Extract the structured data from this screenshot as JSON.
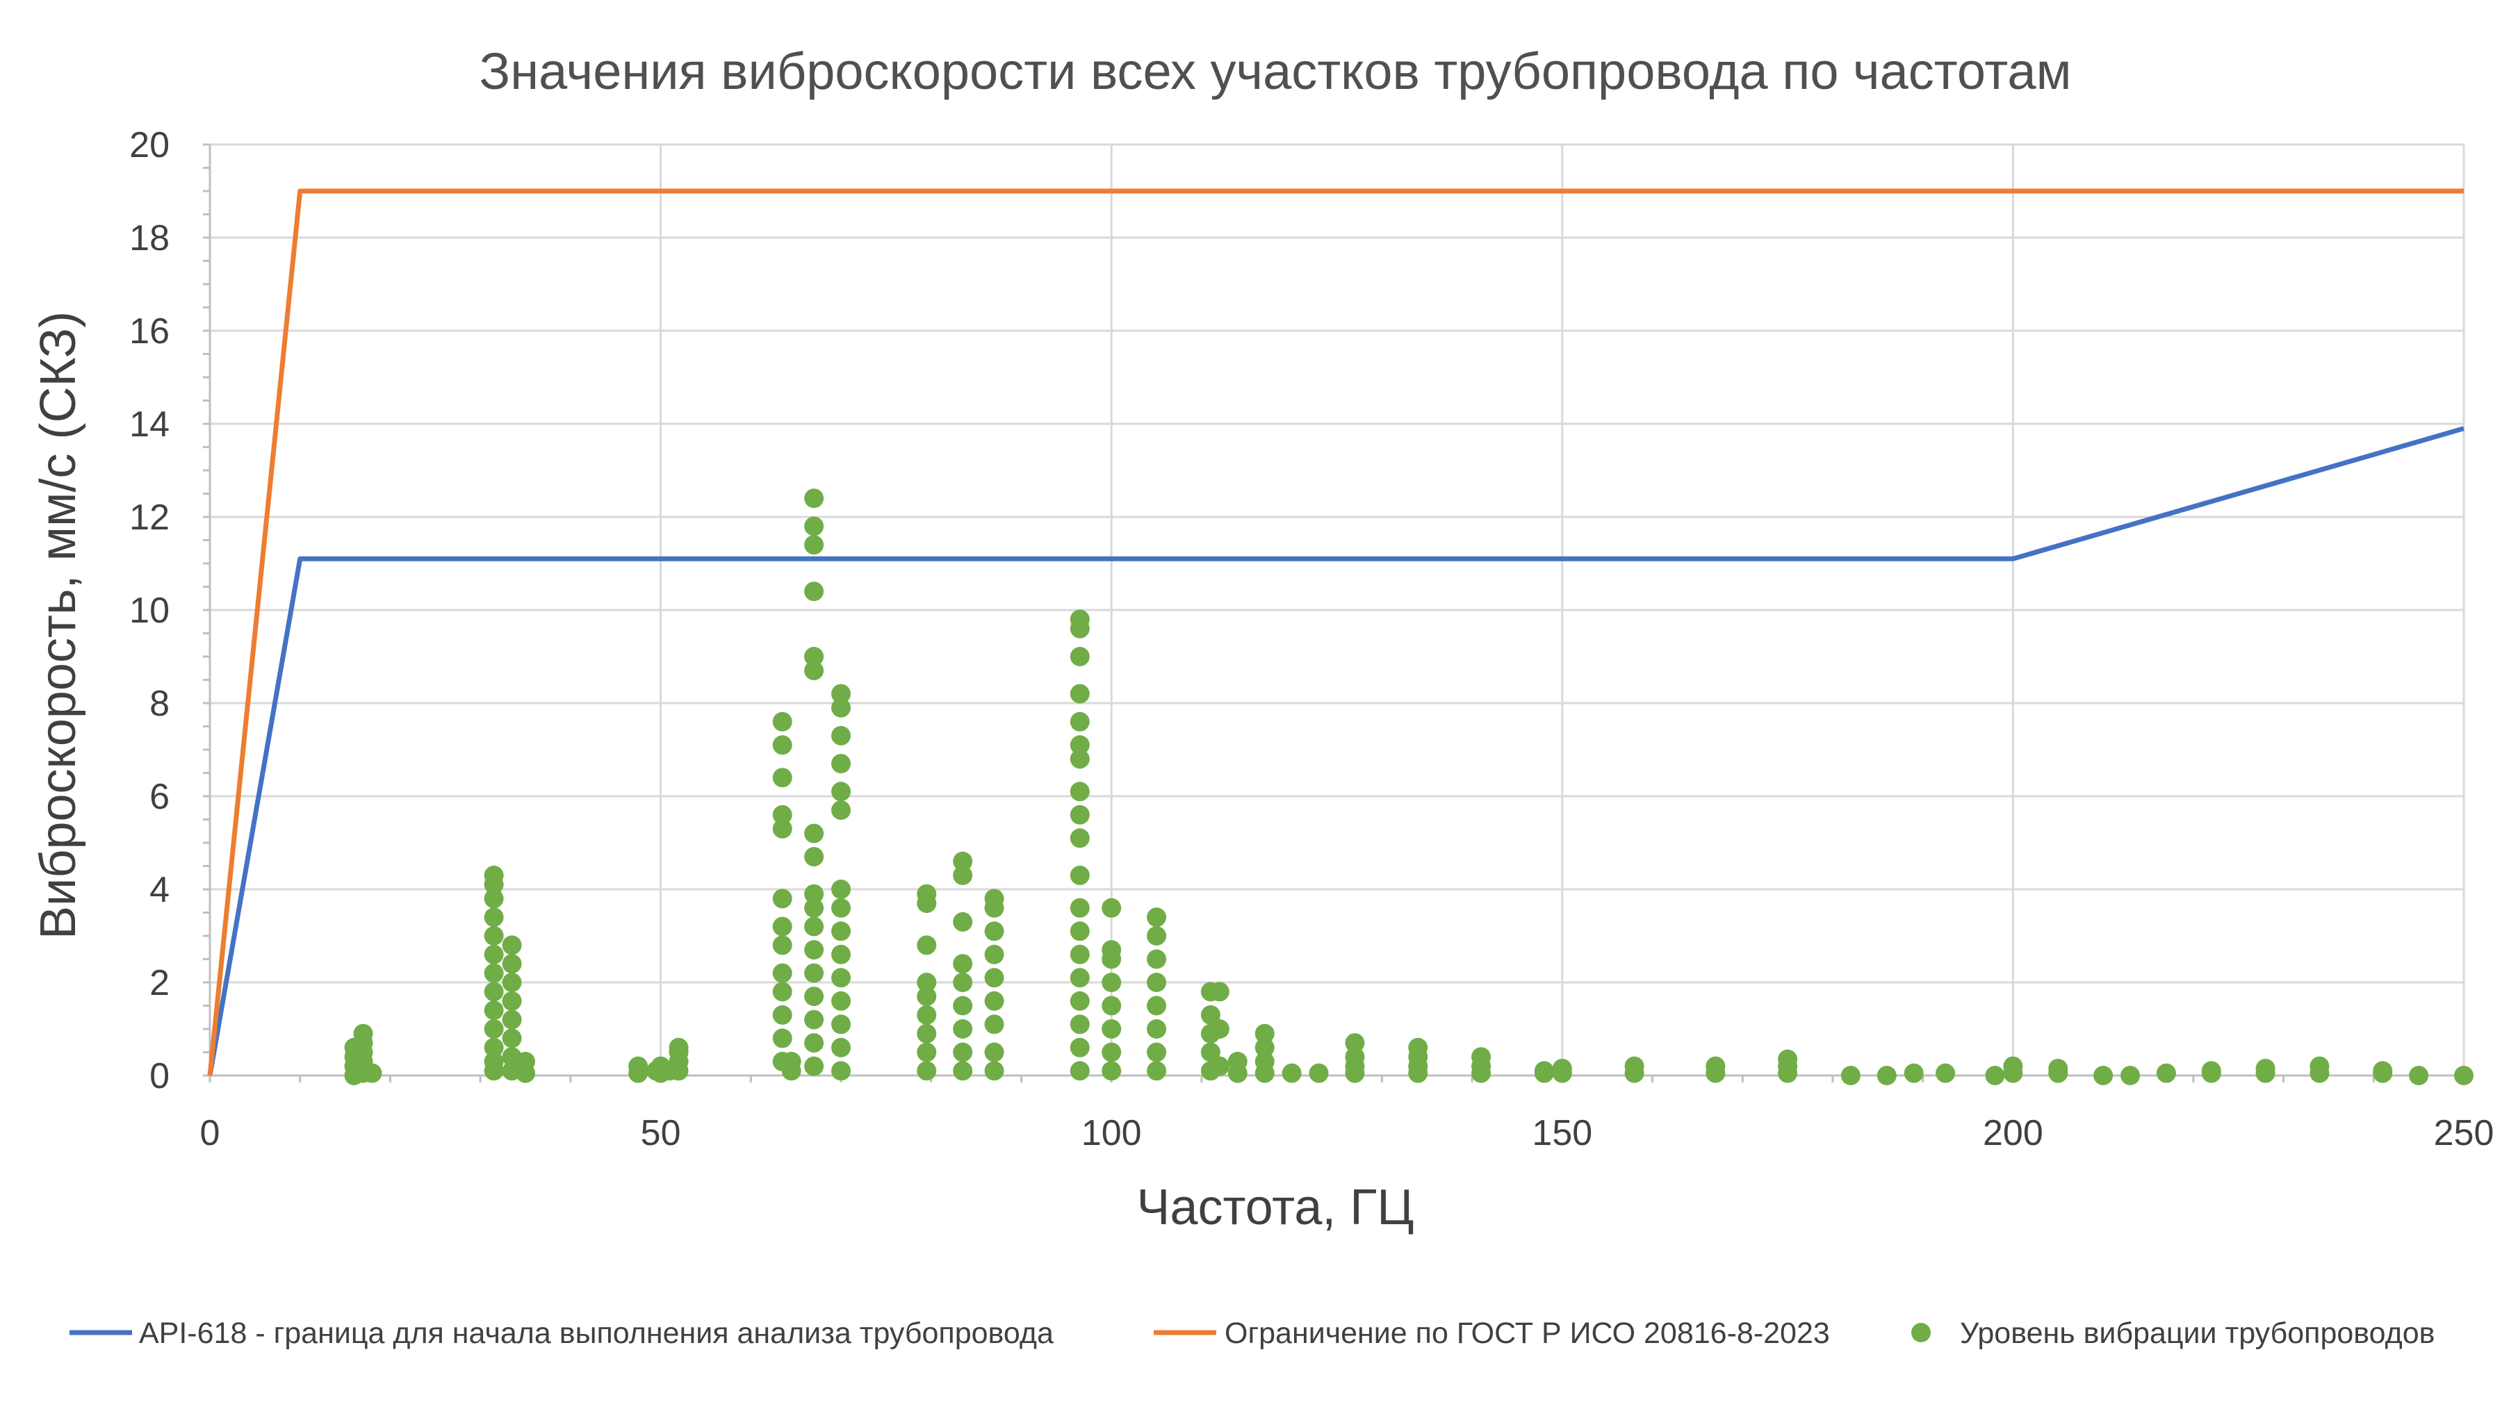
{
  "chart_data": {
    "type": "scatter",
    "title": "Значения виброскорости всех участков трубопровода по частотам",
    "xlabel": "Частота, ГЦ",
    "ylabel": "Виброскорость, мм/с (СКЗ)",
    "xlim": [
      0,
      250
    ],
    "ylim": [
      0,
      20
    ],
    "x_ticks": [
      "0",
      "50",
      "100",
      "150",
      "200",
      "250"
    ],
    "y_ticks": [
      "0",
      "2",
      "4",
      "6",
      "8",
      "10",
      "12",
      "14",
      "16",
      "18",
      "20"
    ],
    "grid": true,
    "legend_position": "bottom",
    "series": [
      {
        "name": "API-618 - граница для начала выполнения анализа трубопровода",
        "type": "line",
        "color": "#4472C4",
        "points": [
          [
            0,
            0
          ],
          [
            10,
            11.1
          ],
          [
            200,
            11.1
          ],
          [
            250,
            13.9
          ]
        ]
      },
      {
        "name": "Ограничение по ГОСТ Р ИСО 20816-8-2023",
        "type": "line",
        "color": "#ED7D31",
        "points": [
          [
            0,
            0
          ],
          [
            10,
            19.0
          ],
          [
            250,
            19.0
          ]
        ]
      },
      {
        "name": "Уровень вибрации трубопроводов",
        "type": "scatter",
        "color": "#70AD47",
        "points": [
          [
            16,
            0.0
          ],
          [
            16,
            0.2
          ],
          [
            16,
            0.4
          ],
          [
            16,
            0.6
          ],
          [
            17,
            0.05
          ],
          [
            17,
            0.3
          ],
          [
            17,
            0.5
          ],
          [
            17,
            0.7
          ],
          [
            17,
            0.9
          ],
          [
            18,
            0.05
          ],
          [
            31.5,
            0.1
          ],
          [
            31.5,
            0.3
          ],
          [
            31.5,
            0.6
          ],
          [
            31.5,
            1.0
          ],
          [
            31.5,
            1.4
          ],
          [
            31.5,
            1.8
          ],
          [
            31.5,
            2.2
          ],
          [
            31.5,
            2.6
          ],
          [
            31.5,
            3.0
          ],
          [
            31.5,
            3.4
          ],
          [
            31.5,
            3.8
          ],
          [
            31.5,
            4.1
          ],
          [
            31.5,
            4.3
          ],
          [
            33.5,
            0.1
          ],
          [
            33.5,
            0.4
          ],
          [
            33.5,
            0.8
          ],
          [
            33.5,
            1.2
          ],
          [
            33.5,
            1.6
          ],
          [
            33.5,
            2.0
          ],
          [
            33.5,
            2.4
          ],
          [
            33.5,
            2.8
          ],
          [
            35,
            0.05
          ],
          [
            35,
            0.3
          ],
          [
            47.5,
            0.05
          ],
          [
            47.5,
            0.2
          ],
          [
            49.5,
            0.1
          ],
          [
            50,
            0.05
          ],
          [
            50,
            0.2
          ],
          [
            51,
            0.1
          ],
          [
            52,
            0.1
          ],
          [
            52,
            0.3
          ],
          [
            52,
            0.5
          ],
          [
            52,
            0.6
          ],
          [
            63.5,
            0.3
          ],
          [
            63.5,
            0.8
          ],
          [
            63.5,
            1.3
          ],
          [
            63.5,
            1.8
          ],
          [
            63.5,
            2.2
          ],
          [
            63.5,
            2.8
          ],
          [
            63.5,
            3.2
          ],
          [
            63.5,
            3.8
          ],
          [
            63.5,
            5.3
          ],
          [
            63.5,
            5.6
          ],
          [
            63.5,
            6.4
          ],
          [
            63.5,
            7.1
          ],
          [
            63.5,
            7.6
          ],
          [
            64.5,
            0.1
          ],
          [
            64.5,
            0.3
          ],
          [
            67,
            0.2
          ],
          [
            67,
            0.7
          ],
          [
            67,
            1.2
          ],
          [
            67,
            1.7
          ],
          [
            67,
            2.2
          ],
          [
            67,
            2.7
          ],
          [
            67,
            3.2
          ],
          [
            67,
            3.6
          ],
          [
            67,
            3.9
          ],
          [
            67,
            4.7
          ],
          [
            67,
            5.2
          ],
          [
            67,
            8.7
          ],
          [
            67,
            9.0
          ],
          [
            67,
            10.4
          ],
          [
            67,
            11.4
          ],
          [
            67,
            11.8
          ],
          [
            67,
            12.4
          ],
          [
            70,
            0.1
          ],
          [
            70,
            0.6
          ],
          [
            70,
            1.1
          ],
          [
            70,
            1.6
          ],
          [
            70,
            2.1
          ],
          [
            70,
            2.6
          ],
          [
            70,
            3.1
          ],
          [
            70,
            3.6
          ],
          [
            70,
            4.0
          ],
          [
            70,
            5.7
          ],
          [
            70,
            6.1
          ],
          [
            70,
            6.7
          ],
          [
            70,
            7.3
          ],
          [
            70,
            7.9
          ],
          [
            70,
            8.2
          ],
          [
            79.5,
            0.1
          ],
          [
            79.5,
            0.5
          ],
          [
            79.5,
            0.9
          ],
          [
            79.5,
            1.3
          ],
          [
            79.5,
            1.7
          ],
          [
            79.5,
            2.0
          ],
          [
            79.5,
            2.8
          ],
          [
            79.5,
            3.7
          ],
          [
            79.5,
            3.9
          ],
          [
            83.5,
            0.1
          ],
          [
            83.5,
            0.5
          ],
          [
            83.5,
            1.0
          ],
          [
            83.5,
            1.5
          ],
          [
            83.5,
            2.0
          ],
          [
            83.5,
            2.4
          ],
          [
            83.5,
            3.3
          ],
          [
            83.5,
            4.3
          ],
          [
            83.5,
            4.6
          ],
          [
            87,
            0.1
          ],
          [
            87,
            0.5
          ],
          [
            87,
            1.1
          ],
          [
            87,
            1.6
          ],
          [
            87,
            2.1
          ],
          [
            87,
            2.6
          ],
          [
            87,
            3.1
          ],
          [
            87,
            3.6
          ],
          [
            87,
            3.8
          ],
          [
            96.5,
            0.1
          ],
          [
            96.5,
            0.6
          ],
          [
            96.5,
            1.1
          ],
          [
            96.5,
            1.6
          ],
          [
            96.5,
            2.1
          ],
          [
            96.5,
            2.6
          ],
          [
            96.5,
            3.1
          ],
          [
            96.5,
            3.6
          ],
          [
            96.5,
            4.3
          ],
          [
            96.5,
            5.1
          ],
          [
            96.5,
            5.6
          ],
          [
            96.5,
            6.1
          ],
          [
            96.5,
            6.8
          ],
          [
            96.5,
            7.1
          ],
          [
            96.5,
            7.6
          ],
          [
            96.5,
            8.2
          ],
          [
            96.5,
            9.0
          ],
          [
            96.5,
            9.6
          ],
          [
            96.5,
            9.8
          ],
          [
            100,
            0.1
          ],
          [
            100,
            0.5
          ],
          [
            100,
            1.0
          ],
          [
            100,
            1.5
          ],
          [
            100,
            2.0
          ],
          [
            100,
            2.5
          ],
          [
            100,
            2.7
          ],
          [
            100,
            3.6
          ],
          [
            105,
            0.1
          ],
          [
            105,
            0.5
          ],
          [
            105,
            1.0
          ],
          [
            105,
            1.5
          ],
          [
            105,
            2.0
          ],
          [
            105,
            2.5
          ],
          [
            105,
            3.0
          ],
          [
            105,
            3.4
          ],
          [
            111,
            0.1
          ],
          [
            111,
            0.5
          ],
          [
            111,
            0.9
          ],
          [
            111,
            1.3
          ],
          [
            111,
            1.8
          ],
          [
            112,
            0.2
          ],
          [
            112,
            1.0
          ],
          [
            112,
            1.8
          ],
          [
            114,
            0.05
          ],
          [
            114,
            0.3
          ],
          [
            117,
            0.05
          ],
          [
            117,
            0.3
          ],
          [
            117,
            0.6
          ],
          [
            117,
            0.9
          ],
          [
            120,
            0.05
          ],
          [
            123,
            0.05
          ],
          [
            127,
            0.05
          ],
          [
            127,
            0.2
          ],
          [
            127,
            0.4
          ],
          [
            127,
            0.7
          ],
          [
            134,
            0.05
          ],
          [
            134,
            0.2
          ],
          [
            134,
            0.4
          ],
          [
            134,
            0.6
          ],
          [
            141,
            0.05
          ],
          [
            141,
            0.2
          ],
          [
            141,
            0.4
          ],
          [
            148,
            0.05
          ],
          [
            148,
            0.1
          ],
          [
            150,
            0.05
          ],
          [
            150,
            0.15
          ],
          [
            158,
            0.05
          ],
          [
            158,
            0.2
          ],
          [
            167,
            0.05
          ],
          [
            167,
            0.2
          ],
          [
            175,
            0.05
          ],
          [
            175,
            0.2
          ],
          [
            175,
            0.35
          ],
          [
            182,
            0.0
          ],
          [
            186,
            0.0
          ],
          [
            189,
            0.05
          ],
          [
            192.5,
            0.05
          ],
          [
            198,
            0.0
          ],
          [
            200,
            0.05
          ],
          [
            200,
            0.2
          ],
          [
            205,
            0.05
          ],
          [
            205,
            0.15
          ],
          [
            210,
            0.0
          ],
          [
            213,
            0.0
          ],
          [
            217,
            0.05
          ],
          [
            222,
            0.05
          ],
          [
            222,
            0.1
          ],
          [
            228,
            0.05
          ],
          [
            228,
            0.15
          ],
          [
            234,
            0.05
          ],
          [
            234,
            0.2
          ],
          [
            241,
            0.05
          ],
          [
            241,
            0.1
          ],
          [
            245,
            0.0
          ],
          [
            250,
            0.0
          ]
        ]
      }
    ]
  }
}
